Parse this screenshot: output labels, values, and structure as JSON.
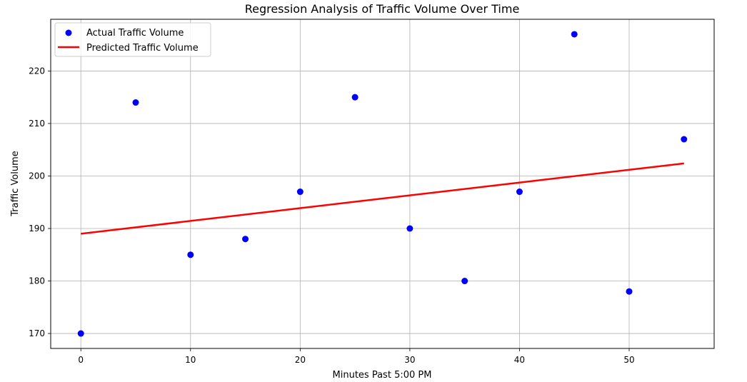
{
  "chart_data": {
    "type": "scatter",
    "title": "Regression Analysis of Traffic Volume Over Time",
    "xlabel": "Minutes Past 5:00 PM",
    "ylabel": "Traffic Volume",
    "xlim": [
      -2.75,
      57.75
    ],
    "ylim": [
      167.15,
      229.85
    ],
    "xticks": [
      0,
      10,
      20,
      30,
      40,
      50
    ],
    "yticks": [
      170,
      180,
      190,
      200,
      210,
      220
    ],
    "grid": true,
    "legend_position": "top-left",
    "series": [
      {
        "name": "Actual Traffic Volume",
        "kind": "scatter",
        "color": "#0000ff",
        "x": [
          0,
          5,
          10,
          15,
          20,
          25,
          30,
          35,
          40,
          45,
          50,
          55
        ],
        "y": [
          170,
          214,
          185,
          188,
          197,
          215,
          190,
          180,
          197,
          227,
          178,
          207
        ]
      },
      {
        "name": "Predicted Traffic Volume",
        "kind": "line",
        "color": "#ff0000",
        "x": [
          0,
          55
        ],
        "y": [
          189.0,
          202.4
        ]
      }
    ]
  }
}
